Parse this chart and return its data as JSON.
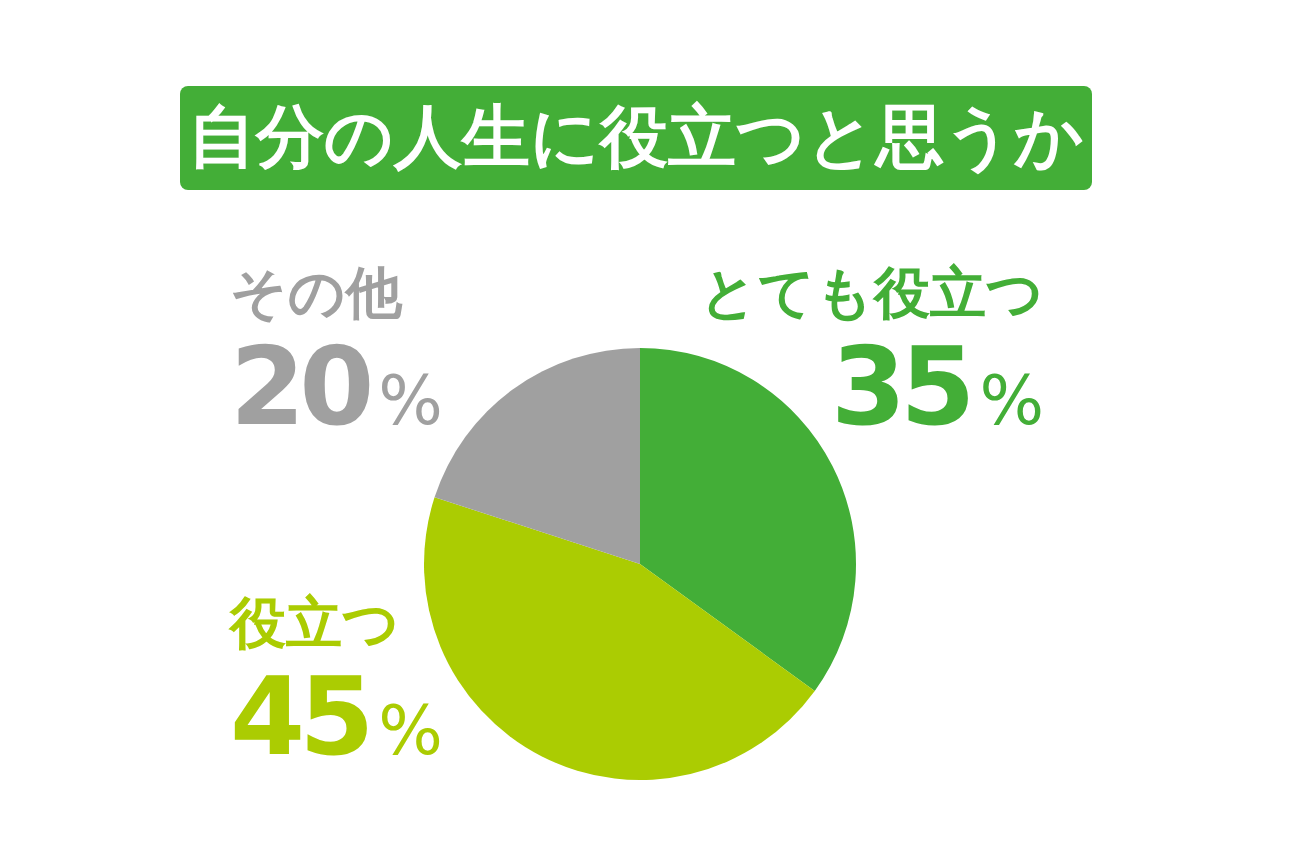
{
  "chart_data": {
    "type": "pie",
    "title": "自分の人生に役立つと思うか",
    "categories": [
      "とても役立つ",
      "役立つ",
      "その他"
    ],
    "values": [
      35,
      45,
      20
    ],
    "colors": [
      "#43ae37",
      "#abcc02",
      "#a0a0a0"
    ],
    "value_labels": [
      "35%",
      "45%",
      "20%"
    ]
  }
}
